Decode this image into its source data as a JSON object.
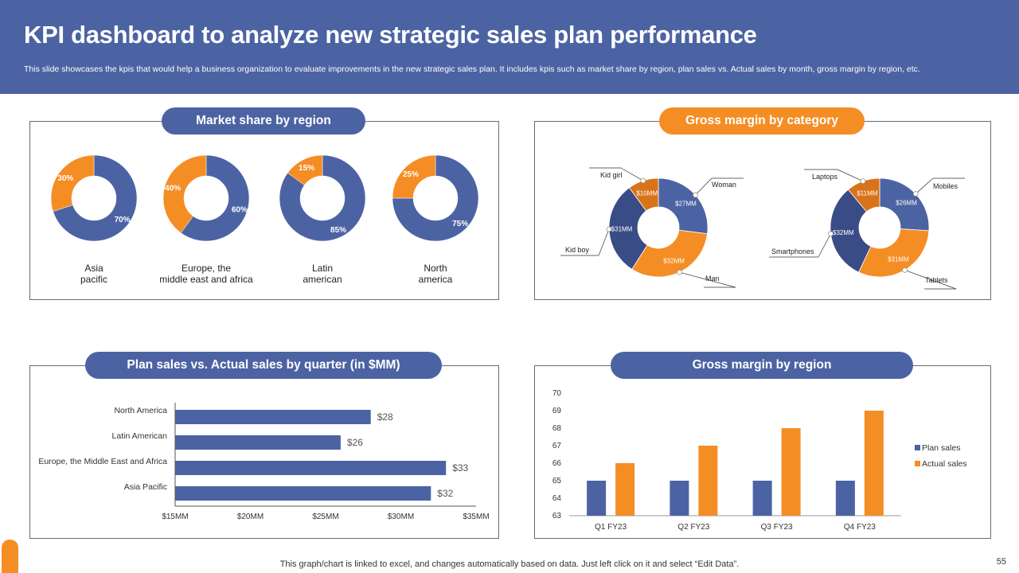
{
  "header": {
    "title": "KPI dashboard to analyze new strategic sales plan performance",
    "subtitle": "This slide showcases the kpis that would help a business organization to evaluate improvements in the new strategic sales plan. It includes kpis such as market share by region, plan sales vs. Actual sales by month, gross margin by region, etc."
  },
  "colors": {
    "blue": "#4c63a3",
    "orange": "#f58d25",
    "dark_blue": "#3a4c86",
    "dark_orange": "#d9731a"
  },
  "footer": {
    "note": "This graph/chart is linked to excel,  and changes automatically based on data. Just left click on it and select “Edit Data”.",
    "page": "55"
  },
  "panels": {
    "market_share": {
      "title": "Market share by region"
    },
    "gross_margin_category": {
      "title": "Gross margin by category"
    },
    "plan_vs_actual": {
      "title": "Plan sales vs. Actual sales by quarter (in $MM)"
    },
    "gross_margin_region": {
      "title": "Gross margin by region"
    }
  },
  "chart_data": [
    {
      "type": "pie",
      "title": "Market share by region",
      "donuts": [
        {
          "label": [
            "Asia",
            "pacific"
          ],
          "blue_pct": 70,
          "orange_pct": 30,
          "blue_label": "70%",
          "orange_label": "30%"
        },
        {
          "label": [
            "Europe, the",
            "middle east and africa"
          ],
          "blue_pct": 60,
          "orange_pct": 40,
          "blue_label": "60%",
          "orange_label": "40%"
        },
        {
          "label": [
            "Latin",
            "american"
          ],
          "blue_pct": 85,
          "orange_pct": 15,
          "blue_label": "85%",
          "orange_label": "15%"
        },
        {
          "label": [
            "North",
            "america"
          ],
          "blue_pct": 75,
          "orange_pct": 25,
          "blue_label": "75%",
          "orange_label": "25%"
        }
      ]
    },
    {
      "type": "pie",
      "title": "Gross margin by category",
      "donuts": [
        {
          "slices": [
            {
              "name": "Woman",
              "value": 27,
              "label": "$27MM",
              "color": "#4c63a3"
            },
            {
              "name": "Man",
              "value": 32,
              "label": "$32MM",
              "color": "#f58d25"
            },
            {
              "name": "Kid boy",
              "value": 31,
              "label": "$31MM",
              "color": "#3a4c86"
            },
            {
              "name": "Kid girl",
              "value": 10,
              "label": "$10MM",
              "color": "#d9731a"
            }
          ]
        },
        {
          "slices": [
            {
              "name": "Mobiles",
              "value": 26,
              "label": "$26MM",
              "color": "#4c63a3"
            },
            {
              "name": "Tablets",
              "value": 31,
              "label": "$31MM",
              "color": "#f58d25"
            },
            {
              "name": "Smartphones",
              "value": 32,
              "label": "$32MM",
              "color": "#3a4c86"
            },
            {
              "name": "Laptops",
              "value": 11,
              "label": "$11MM",
              "color": "#d9731a"
            }
          ]
        }
      ]
    },
    {
      "type": "bar",
      "orientation": "horizontal",
      "title": "Plan sales vs. Actual sales by quarter (in $MM)",
      "categories": [
        "North America",
        "Latin American",
        "Europe, the Middle East and Africa",
        "Asia Pacific"
      ],
      "values": [
        28,
        26,
        33,
        32
      ],
      "value_labels": [
        "$28",
        "$26",
        "$33",
        "$32"
      ],
      "xlim": [
        15,
        35
      ],
      "xticks": [
        15,
        20,
        25,
        30,
        35
      ],
      "xtick_labels": [
        "$15MM",
        "$20MM",
        "$25MM",
        "$30MM",
        "$35MM"
      ]
    },
    {
      "type": "bar",
      "title": "Gross margin by region",
      "categories": [
        "Q1 FY23",
        "Q2 FY23",
        "Q3 FY23",
        "Q4 FY23"
      ],
      "series": [
        {
          "name": "Plan sales",
          "values": [
            65,
            65,
            65,
            65
          ],
          "color": "#4c63a3"
        },
        {
          "name": "Actual sales",
          "values": [
            66,
            67,
            68,
            69
          ],
          "color": "#f58d25"
        }
      ],
      "ylim": [
        63,
        70
      ],
      "yticks": [
        "63",
        "64",
        "65",
        "66",
        "67",
        "68",
        "69",
        "70"
      ],
      "legend": "right"
    }
  ]
}
